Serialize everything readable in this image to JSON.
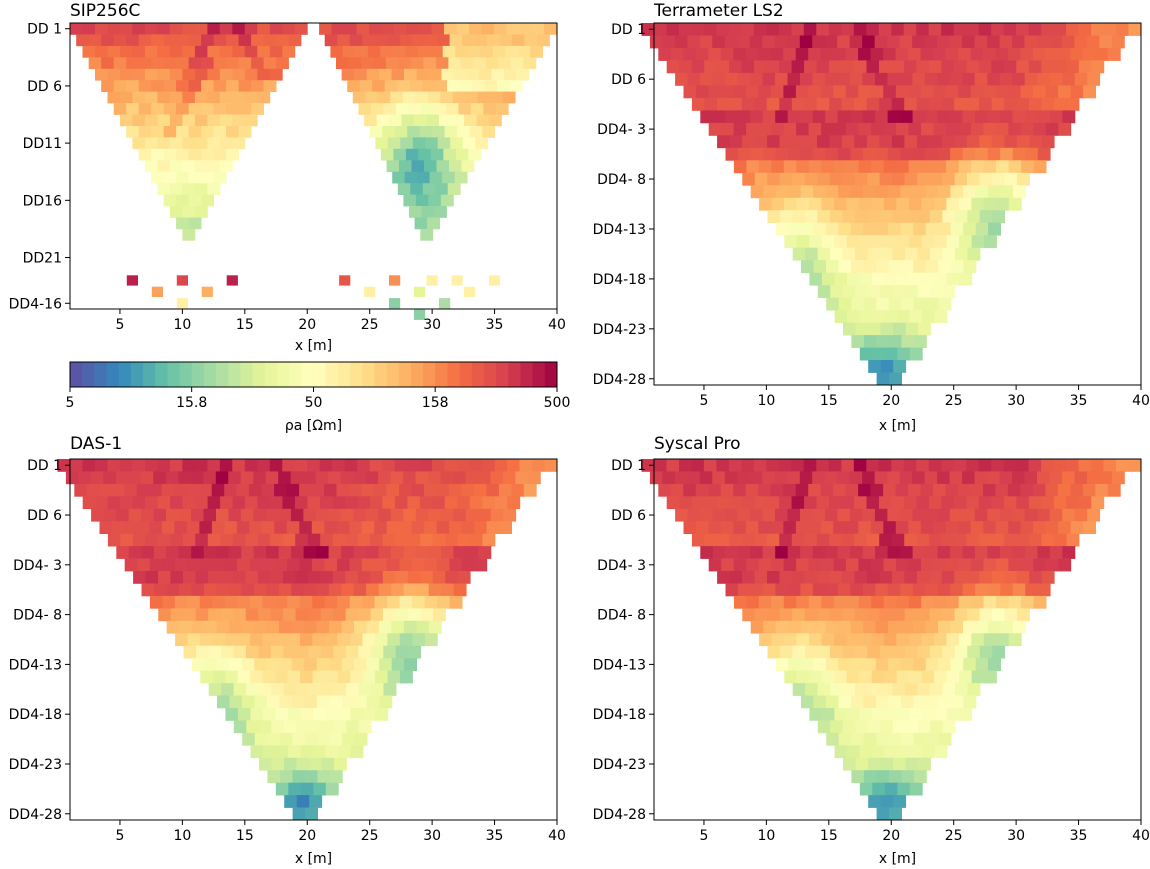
{
  "figure": {
    "colorbar_label": "ρa [Ωm]"
  },
  "colormap": {
    "name": "Spectral_r",
    "stops": [
      "#5e4fa2",
      "#3288bd",
      "#66c2a5",
      "#abdda4",
      "#e6f598",
      "#ffffbf",
      "#fee08b",
      "#fdae61",
      "#f46d43",
      "#d53e4f",
      "#9e0142"
    ],
    "scale": "log",
    "range": [
      5,
      500
    ],
    "ticks": [
      5,
      15.8,
      50,
      158,
      500
    ],
    "tick_labels": [
      "5",
      "15.8",
      "50",
      "158",
      "500"
    ]
  },
  "chart_data": [
    {
      "type": "heatmap",
      "title": "SIP256C",
      "xlabel": "x [m]",
      "xlim": [
        1,
        40
      ],
      "x_ticks": [
        5,
        10,
        15,
        20,
        25,
        30,
        35,
        40
      ],
      "y_levels": 25,
      "y_ticks": [
        {
          "level": 1,
          "label": "DD 1"
        },
        {
          "level": 6,
          "label": "DD 6"
        },
        {
          "level": 11,
          "label": "DD11"
        },
        {
          "level": 16,
          "label": "DD16"
        },
        {
          "level": 21,
          "label": "DD21"
        },
        {
          "level": 25,
          "label": "DD4-16"
        }
      ],
      "layout": "two_triangles",
      "has_xlabel": true
    },
    {
      "type": "heatmap",
      "title": "Terrameter LS2",
      "xlabel": "x [m]",
      "xlim": [
        1,
        40
      ],
      "x_ticks": [
        5,
        10,
        15,
        20,
        25,
        30,
        35,
        40
      ],
      "y_levels": 29,
      "y_ticks": [
        {
          "level": 1,
          "label": "DD 1"
        },
        {
          "level": 5,
          "label": "DD 6"
        },
        {
          "level": 9,
          "label": "DD4- 3"
        },
        {
          "level": 13,
          "label": "DD4- 8"
        },
        {
          "level": 17,
          "label": "DD4-13"
        },
        {
          "level": 21,
          "label": "DD4-18"
        },
        {
          "level": 25,
          "label": "DD4-23"
        },
        {
          "level": 29,
          "label": "DD4-28"
        }
      ],
      "layout": "full_triangle",
      "has_xlabel": true
    },
    {
      "type": "heatmap",
      "title": "DAS-1",
      "xlabel": "x [m]",
      "xlim": [
        1,
        40
      ],
      "x_ticks": [
        5,
        10,
        15,
        20,
        25,
        30,
        35,
        40
      ],
      "y_levels": 29,
      "y_ticks": [
        {
          "level": 1,
          "label": "DD 1"
        },
        {
          "level": 5,
          "label": "DD 6"
        },
        {
          "level": 9,
          "label": "DD4- 3"
        },
        {
          "level": 13,
          "label": "DD4- 8"
        },
        {
          "level": 17,
          "label": "DD4-13"
        },
        {
          "level": 21,
          "label": "DD4-18"
        },
        {
          "level": 25,
          "label": "DD4-23"
        },
        {
          "level": 29,
          "label": "DD4-28"
        }
      ],
      "layout": "full_triangle",
      "has_xlabel": true
    },
    {
      "type": "heatmap",
      "title": "Syscal Pro",
      "xlabel": "x [m]",
      "xlim": [
        1,
        40
      ],
      "x_ticks": [
        5,
        10,
        15,
        20,
        25,
        30,
        35,
        40
      ],
      "y_levels": 29,
      "y_ticks": [
        {
          "level": 1,
          "label": "DD 1"
        },
        {
          "level": 5,
          "label": "DD 6"
        },
        {
          "level": 9,
          "label": "DD4- 3"
        },
        {
          "level": 13,
          "label": "DD4- 8"
        },
        {
          "level": 17,
          "label": "DD4-13"
        },
        {
          "level": 21,
          "label": "DD4-18"
        },
        {
          "level": 25,
          "label": "DD4-23"
        },
        {
          "level": 29,
          "label": "DD4-28"
        }
      ],
      "layout": "full_triangle",
      "has_xlabel": true
    }
  ]
}
